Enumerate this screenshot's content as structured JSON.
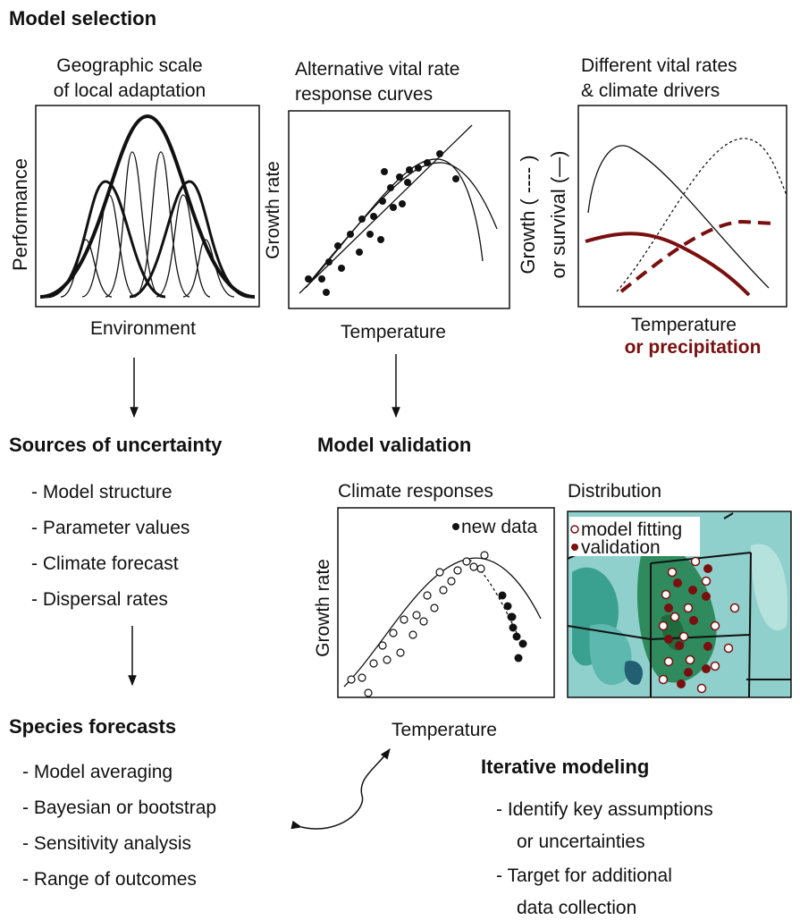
{
  "title": "Model selection",
  "panels": [
    {
      "title": [
        "Geographic scale",
        "of local adaptation"
      ],
      "y_label": "Performance",
      "x_label": "Environment"
    },
    {
      "title": [
        "Alternative vital rate",
        "response curves"
      ],
      "y_label": "Growth rate",
      "x_label": "Temperature"
    },
    {
      "title": [
        "Different vital rates",
        "& climate drivers"
      ],
      "y_label": [
        "Growth ( ---- )",
        "or survival (—)"
      ],
      "x_label": [
        "Temperature",
        "or precipitation"
      ]
    }
  ],
  "uncertainty": {
    "title": "Sources of uncertainty",
    "items": [
      "- Model structure",
      "- Parameter values",
      "- Climate forecast",
      "- Dispersal rates"
    ]
  },
  "validation": {
    "title": "Model validation",
    "climate": {
      "title": "Climate responses",
      "legend": "new data",
      "y_label": "Growth rate",
      "x_label": "Temperature"
    },
    "distribution": {
      "title": "Distribution",
      "legend": [
        "model fitting",
        "validation"
      ]
    }
  },
  "forecasts": {
    "title": "Species forecasts",
    "items": [
      "- Model averaging",
      "- Bayesian or bootstrap",
      "- Sensitivity analysis",
      "- Range of outcomes"
    ]
  },
  "iterative": {
    "title": "Iterative modeling",
    "items": [
      [
        "- Identify key assumptions",
        "or uncertainties"
      ],
      [
        "- Target for additional",
        "data collection"
      ]
    ]
  }
}
